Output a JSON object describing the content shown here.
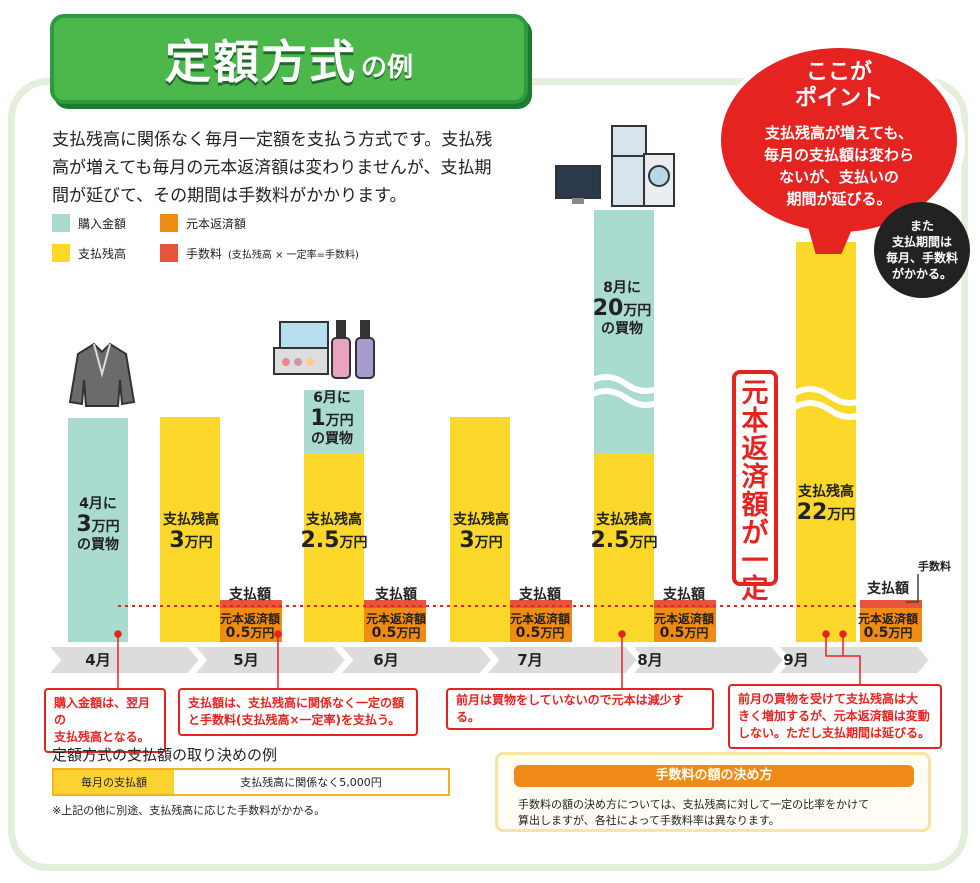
{
  "title": {
    "main": "定額方式",
    "suffix": "の例"
  },
  "intro": {
    "line1": "支払残高に関係なく毎月一定額を支払う方式です。支払残",
    "line2": "高が増えても毎月の元本返済額は変わりませんが、支払期",
    "line3": "間が延びて、その期間は手数料がかかります。"
  },
  "legend": {
    "purchase": "購入金額",
    "principal": "元本返済額",
    "balance": "支払残高",
    "fee": "手数料",
    "fee_note": "(支払残高 × 一定率=手数料)"
  },
  "colors": {
    "purchase": "#a9dbd1",
    "balance": "#fcd82a",
    "principal": "#f08c13",
    "fee": "#e8533d",
    "red": "#e52421",
    "green": "#4cb74b"
  },
  "point": {
    "title1": "ここが",
    "title2": "ポイント",
    "line1": "支払残高が増えても、",
    "line2": "毎月の支払額は変わら",
    "line3": "ないが、支払いの",
    "line4": "期間が延びる。"
  },
  "extra": {
    "line1": "また",
    "line2": "支払期間は",
    "line3": "毎月、手数料",
    "line4": "がかかる。"
  },
  "vertical_label": "元本返済額が一定",
  "fee_label": "手数料",
  "chart_data": {
    "type": "bar",
    "title": "定額方式の例",
    "unit": "万円",
    "categories": [
      "4月",
      "5月",
      "6月",
      "7月",
      "8月",
      "9月"
    ],
    "series": [
      {
        "name": "支払残高",
        "values": [
          0,
          3,
          2.5,
          3,
          2.5,
          22
        ]
      },
      {
        "name": "購入金額",
        "values": [
          3,
          0,
          1,
          0,
          20,
          0
        ]
      },
      {
        "name": "元本返済額",
        "values": [
          0,
          0.5,
          0.5,
          0.5,
          0.5,
          0.5
        ]
      }
    ],
    "bar_labels": {
      "purchase": [
        {
          "month": "4月",
          "pre": "4月に",
          "num": "3",
          "unit": "万円",
          "post": "の買物"
        },
        {
          "month": "6月",
          "pre": "6月に",
          "num": "1",
          "unit": "万円",
          "post": "の買物"
        },
        {
          "month": "8月",
          "pre": "8月に",
          "num": "20",
          "unit": "万円",
          "post": "の買物"
        }
      ],
      "balance": [
        {
          "month": "5月",
          "pre": "支払残高",
          "num": "3",
          "unit": "万円"
        },
        {
          "month": "6月",
          "pre": "支払残高",
          "num": "2.5",
          "unit": "万円"
        },
        {
          "month": "7月",
          "pre": "支払残高",
          "num": "3",
          "unit": "万円"
        },
        {
          "month": "8月",
          "pre": "支払残高",
          "num": "2.5",
          "unit": "万円"
        },
        {
          "month": "9月",
          "pre": "支払残高",
          "num": "22",
          "unit": "万円"
        }
      ],
      "payment": {
        "title": "支払額",
        "label": "元本返済額",
        "num": "0.5",
        "unit": "万円"
      }
    }
  },
  "callouts": {
    "c1": {
      "line1": "購入金額は、翌月の",
      "line2": "支払残高となる。"
    },
    "c2": {
      "line1": "支払額は、支払残高に関係なく一定の額",
      "line2": "と手数料(支払残高×一定率)を支払う。"
    },
    "c3": {
      "line1": "前月は買物をしていないので元本は減少する。"
    },
    "c4": {
      "line1": "前月の買物を受けて支払残高は大",
      "line2": "きく増加するが、元本返済額は変動",
      "line3": "しない。ただし支払期間は延びる。"
    }
  },
  "rules": {
    "title": "定額方式の支払額の取り決めの例",
    "label": "毎月の支払額",
    "value": "支払残高に関係なく5,000円",
    "note": "※上記の他に別途、支払残高に応じた手数料がかかる。"
  },
  "fee_box": {
    "title": "手数料の額の決め方",
    "line1": "手数料の額の決め方については、支払残高に対して一定の比率をかけて",
    "line2": "算出しますが、各社によって手数料率は異なります。"
  }
}
